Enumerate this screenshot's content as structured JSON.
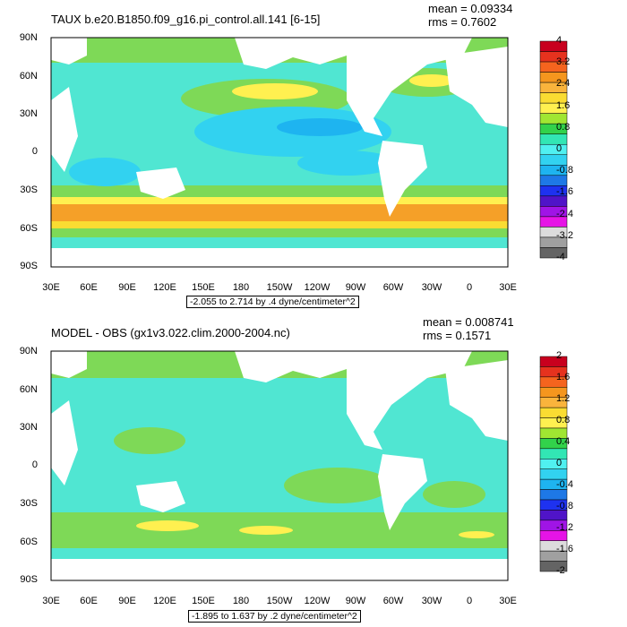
{
  "panels": [
    {
      "title": "TAUX b.e20.B1850.f09_g16.pi_control.all.141 [6-15]",
      "mean": "mean = 0.09334",
      "rms": "rms = 0.7602",
      "contour_info": "-2.055 to 2.714 by .4 dyne/centimeter^2",
      "colorbar": {
        "labels": [
          "4",
          "3.2",
          "2.4",
          "1.6",
          "0.8",
          "0",
          "-0.8",
          "-1.6",
          "-2.4",
          "-3.2",
          "-4"
        ],
        "colors": [
          "#c8001e",
          "#e6321e",
          "#f5641e",
          "#f5961e",
          "#fab43c",
          "#fadc32",
          "#fff050",
          "#a0e632",
          "#32d24b",
          "#32e6b4",
          "#50f0f0",
          "#32d2f0",
          "#1eb4f0",
          "#1e78e6",
          "#1e32f0",
          "#5014c8",
          "#a014e6",
          "#e614e6",
          "#dcdcdc",
          "#a0a0a0",
          "#646464"
        ]
      }
    },
    {
      "title": "MODEL - OBS (gx1v3.022.clim.2000-2004.nc)",
      "mean": "mean = 0.008741",
      "rms": "rms = 0.1571",
      "contour_info": "-1.895 to 1.637 by .2 dyne/centimeter^2",
      "colorbar": {
        "labels": [
          "2",
          "1.6",
          "1.2",
          "0.8",
          "0.4",
          "0",
          "-0.4",
          "-0.8",
          "-1.2",
          "-1.6",
          "-2"
        ],
        "colors": [
          "#c8001e",
          "#e6321e",
          "#f5641e",
          "#f5961e",
          "#fab43c",
          "#fadc32",
          "#fff050",
          "#a0e632",
          "#32d24b",
          "#32e6b4",
          "#50f0f0",
          "#32d2f0",
          "#1eb4f0",
          "#1e78e6",
          "#1e32f0",
          "#5014c8",
          "#a014e6",
          "#e614e6",
          "#dcdcdc",
          "#a0a0a0",
          "#646464"
        ]
      }
    }
  ],
  "lat_labels": [
    "90N",
    "60N",
    "30N",
    "0",
    "30S",
    "60S",
    "90S"
  ],
  "lon_labels": [
    "30E",
    "60E",
    "90E",
    "120E",
    "150E",
    "180",
    "150W",
    "120W",
    "90W",
    "60W",
    "30W",
    "0",
    "30E"
  ]
}
